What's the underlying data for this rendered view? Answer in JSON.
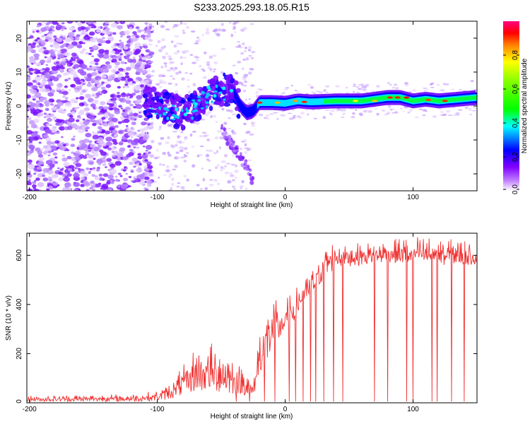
{
  "chart_data": [
    {
      "type": "heatmap",
      "title": "S233.2025.293.18.05.R15",
      "xlabel": "Height of straight line (km)",
      "ylabel": "Frequency (Hz)",
      "xlim": [
        -202,
        150
      ],
      "ylim": [
        -25,
        25
      ],
      "xticks": [
        -200,
        -100,
        0,
        100
      ],
      "yticks": [
        -20,
        -10,
        0,
        10,
        20
      ],
      "colorbar": {
        "label": "Normalized spectral amplitude",
        "range": [
          0,
          1
        ],
        "ticks": [
          0.0,
          0.2,
          0.4,
          0.6,
          0.8
        ],
        "tick_labels": [
          "0.0",
          "0.2",
          "0.4",
          "0.6",
          "0.8"
        ],
        "colormap_stops": [
          "#ffffff",
          "#8000ff",
          "#0000ff",
          "#00ffff",
          "#00ff00",
          "#ffff00",
          "#ff0000",
          "#ff0080"
        ]
      },
      "ridge": {
        "x": [
          -110,
          -100,
          -90,
          -80,
          -70,
          -60,
          -50,
          -40,
          -35,
          -30,
          -25,
          -20,
          -10,
          0,
          10,
          20,
          40,
          60,
          80,
          90,
          100,
          110,
          120,
          150
        ],
        "y": [
          1.5,
          0.5,
          -1,
          -2,
          -0.5,
          3,
          5,
          4,
          0,
          -2,
          -1.5,
          1,
          1,
          0.8,
          1.5,
          1.2,
          1.5,
          1.5,
          2.5,
          2.5,
          1.5,
          2,
          1.5,
          2.5
        ]
      },
      "noise_region": [
        -202,
        -110
      ],
      "spur": {
        "x": [
          -50,
          -45,
          -40,
          -35,
          -30,
          -25
        ],
        "y": [
          -6,
          -10,
          -12,
          -15,
          -18,
          -22
        ]
      }
    },
    {
      "type": "line",
      "xlabel": "Height of straight line (km)",
      "ylabel": "SNR (10 * v/v)",
      "xlim": [
        -202,
        150
      ],
      "ylim": [
        0,
        690
      ],
      "xticks": [
        -200,
        -100,
        0,
        100
      ],
      "yticks": [
        0,
        200,
        400,
        600
      ],
      "line_color": "#f03030",
      "envelope": {
        "x": [
          -202,
          -120,
          -100,
          -90,
          -80,
          -70,
          -60,
          -50,
          -40,
          -30,
          -25,
          -20,
          -15,
          -10,
          -5,
          0,
          5,
          10,
          15,
          20,
          25,
          30,
          40,
          60,
          80,
          100,
          120,
          150
        ],
        "low": [
          5,
          5,
          8,
          15,
          30,
          45,
          45,
          40,
          35,
          30,
          20,
          120,
          150,
          200,
          240,
          280,
          320,
          360,
          400,
          430,
          460,
          500,
          550,
          560,
          570,
          560,
          560,
          560
        ],
        "high": [
          30,
          35,
          50,
          80,
          150,
          230,
          250,
          230,
          180,
          130,
          90,
          300,
          400,
          460,
          420,
          420,
          450,
          480,
          500,
          540,
          580,
          640,
          660,
          650,
          660,
          680,
          670,
          660
        ]
      },
      "dips_x": [
        -38,
        -28,
        -16,
        -8,
        3,
        8,
        14,
        20,
        24,
        30,
        38,
        45,
        70,
        80,
        95,
        100,
        115,
        119,
        130,
        140
      ],
      "dip_min": 5
    }
  ]
}
